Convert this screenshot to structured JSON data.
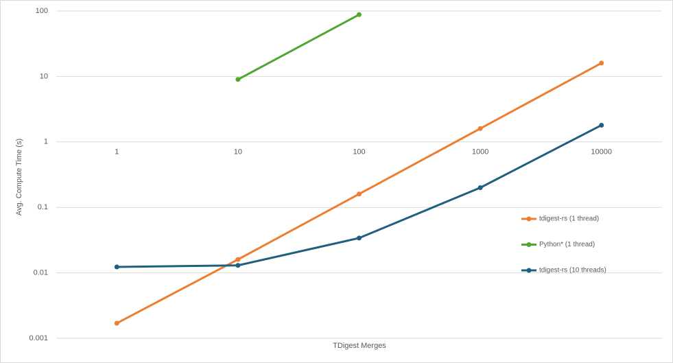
{
  "chart_data": {
    "type": "line",
    "x_label": "TDigest Merges",
    "y_label": "Avg. Compute Time (s)",
    "categories": [
      "1",
      "10",
      "100",
      "1000",
      "10000"
    ],
    "series": [
      {
        "name": "tdigest-rs (1 thread)",
        "color": "#ed7d31",
        "values": [
          0.0017,
          0.016,
          0.16,
          1.6,
          16
        ]
      },
      {
        "name": "Python* (1 thread)",
        "color": "#4ea72e",
        "values": [
          null,
          9,
          88,
          null,
          null
        ]
      },
      {
        "name": "tdigest-rs (10 threads)",
        "color": "#1f5f7f",
        "values": [
          0.0123,
          0.013,
          0.034,
          0.2,
          1.8
        ]
      }
    ],
    "ylim": [
      0.001,
      100
    ],
    "yticks": [
      0.001,
      0.01,
      0.1,
      1,
      10,
      100
    ],
    "log_y": true,
    "grid": true,
    "legend": "right"
  }
}
